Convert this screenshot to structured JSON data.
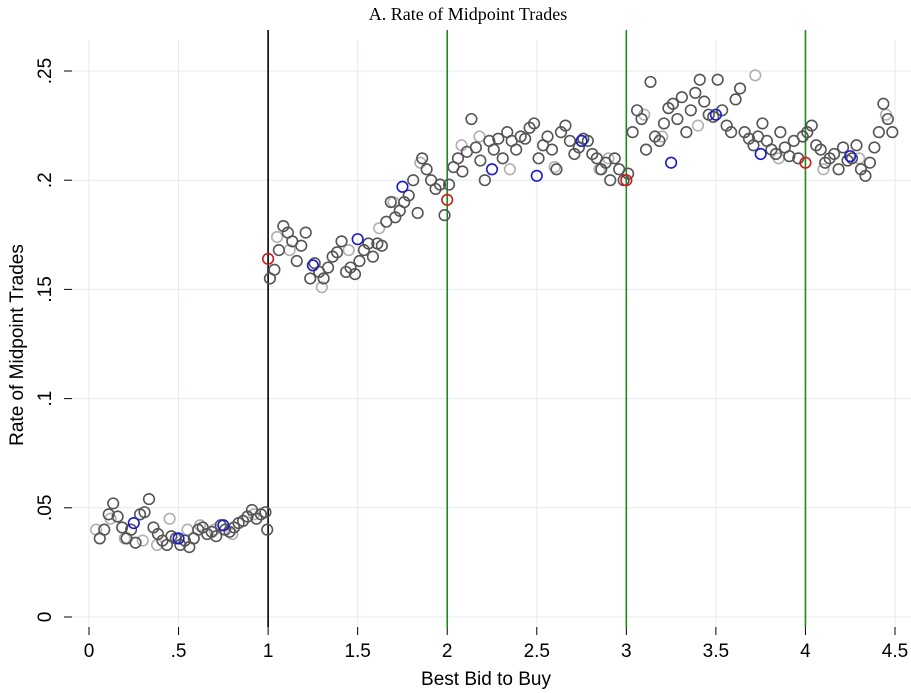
{
  "chart_data": {
    "type": "scatter",
    "title": "A. Rate of Midpoint Trades",
    "x_label": "Best Bid to Buy",
    "y_label": "Rate of Midpoint Trades",
    "xlim": [
      0,
      4.5
    ],
    "ylim": [
      0,
      0.25
    ],
    "xticks": [
      0,
      {
        "value": 0.5,
        "label": ".5"
      },
      1,
      1.5,
      2,
      2.5,
      3,
      3.5,
      4,
      4.5
    ],
    "yticks": [
      0,
      {
        "value": 0.05,
        "label": ".05"
      },
      {
        "value": 0.1,
        "label": ".1"
      },
      {
        "value": 0.15,
        "label": ".15"
      },
      {
        "value": 0.2,
        "label": ".2"
      },
      {
        "value": 0.25,
        "label": ".25"
      }
    ],
    "grid": true,
    "reference_lines": [
      {
        "x": 1,
        "color": "#000000"
      },
      {
        "x": 2,
        "color": "#1a8a1a"
      },
      {
        "x": 3,
        "color": "#1a8a1a"
      },
      {
        "x": 4,
        "color": "#1a8a1a"
      }
    ],
    "series": [
      {
        "color": "#b0b0b0",
        "x": [
          0.04,
          0.12,
          0.2,
          0.3,
          0.38,
          0.45,
          0.55,
          0.62,
          0.7,
          0.8,
          0.92,
          1.05,
          1.12,
          1.3,
          1.45,
          1.62,
          1.7,
          1.85,
          2.08,
          2.18,
          2.35,
          2.6,
          2.85,
          2.9,
          3.1,
          3.2,
          3.4,
          3.72,
          3.85,
          4.1,
          4.3,
          4.45
        ],
        "values": [
          0.04,
          0.045,
          0.036,
          0.035,
          0.033,
          0.045,
          0.04,
          0.042,
          0.04,
          0.038,
          0.047,
          0.174,
          0.168,
          0.151,
          0.168,
          0.178,
          0.19,
          0.208,
          0.216,
          0.22,
          0.205,
          0.206,
          0.205,
          0.21,
          0.23,
          0.22,
          0.225,
          0.248,
          0.21,
          0.205,
          0.21,
          0.23
        ]
      },
      {
        "color": "#555555",
        "x": [
          0.06,
          0.085,
          0.11,
          0.135,
          0.16,
          0.185,
          0.21,
          0.235,
          0.26,
          0.285,
          0.31,
          0.335,
          0.36,
          0.385,
          0.41,
          0.435,
          0.46,
          0.485,
          0.51,
          0.535,
          0.56,
          0.585,
          0.61,
          0.635,
          0.66,
          0.685,
          0.71,
          0.735,
          0.76,
          0.785,
          0.81,
          0.835,
          0.86,
          0.885,
          0.91,
          0.935,
          0.96,
          0.985,
          0.995,
          1.01,
          1.035,
          1.06,
          1.085,
          1.11,
          1.135,
          1.16,
          1.185,
          1.21,
          1.235,
          1.26,
          1.285,
          1.31,
          1.335,
          1.36,
          1.385,
          1.41,
          1.435,
          1.46,
          1.485,
          1.51,
          1.535,
          1.56,
          1.585,
          1.61,
          1.635,
          1.66,
          1.685,
          1.71,
          1.735,
          1.76,
          1.785,
          1.81,
          1.835,
          1.86,
          1.885,
          1.91,
          1.935,
          1.96,
          1.985,
          2.01,
          2.035,
          2.06,
          2.085,
          2.11,
          2.135,
          2.16,
          2.185,
          2.21,
          2.235,
          2.26,
          2.285,
          2.31,
          2.335,
          2.36,
          2.385,
          2.41,
          2.435,
          2.46,
          2.485,
          2.51,
          2.535,
          2.56,
          2.585,
          2.61,
          2.635,
          2.66,
          2.685,
          2.71,
          2.735,
          2.76,
          2.785,
          2.81,
          2.835,
          2.86,
          2.885,
          2.91,
          2.935,
          2.96,
          2.985,
          3.01,
          3.035,
          3.06,
          3.085,
          3.11,
          3.135,
          3.16,
          3.185,
          3.21,
          3.235,
          3.26,
          3.285,
          3.31,
          3.335,
          3.36,
          3.385,
          3.41,
          3.435,
          3.46,
          3.485,
          3.51,
          3.535,
          3.56,
          3.585,
          3.61,
          3.635,
          3.66,
          3.685,
          3.71,
          3.735,
          3.76,
          3.785,
          3.81,
          3.835,
          3.86,
          3.885,
          3.91,
          3.935,
          3.96,
          3.985,
          4.01,
          4.035,
          4.06,
          4.085,
          4.11,
          4.135,
          4.16,
          4.185,
          4.21,
          4.235,
          4.26,
          4.285,
          4.31,
          4.335,
          4.36,
          4.385,
          4.41,
          4.435,
          4.46,
          4.485
        ],
        "values": [
          0.036,
          0.04,
          0.047,
          0.052,
          0.046,
          0.041,
          0.036,
          0.04,
          0.034,
          0.047,
          0.048,
          0.054,
          0.041,
          0.038,
          0.035,
          0.033,
          0.037,
          0.036,
          0.033,
          0.035,
          0.032,
          0.036,
          0.04,
          0.041,
          0.038,
          0.039,
          0.037,
          0.042,
          0.04,
          0.039,
          0.041,
          0.043,
          0.044,
          0.046,
          0.049,
          0.045,
          0.047,
          0.048,
          0.04,
          0.155,
          0.159,
          0.168,
          0.179,
          0.176,
          0.172,
          0.163,
          0.17,
          0.176,
          0.155,
          0.162,
          0.158,
          0.155,
          0.16,
          0.165,
          0.167,
          0.172,
          0.158,
          0.16,
          0.157,
          0.163,
          0.168,
          0.171,
          0.165,
          0.171,
          0.17,
          0.181,
          0.19,
          0.183,
          0.186,
          0.19,
          0.193,
          0.2,
          0.185,
          0.21,
          0.205,
          0.2,
          0.196,
          0.198,
          0.184,
          0.198,
          0.206,
          0.21,
          0.204,
          0.213,
          0.228,
          0.215,
          0.209,
          0.2,
          0.218,
          0.214,
          0.219,
          0.21,
          0.222,
          0.218,
          0.214,
          0.22,
          0.219,
          0.224,
          0.226,
          0.21,
          0.216,
          0.22,
          0.214,
          0.205,
          0.222,
          0.225,
          0.218,
          0.212,
          0.215,
          0.219,
          0.218,
          0.212,
          0.21,
          0.205,
          0.208,
          0.2,
          0.21,
          0.205,
          0.2,
          0.203,
          0.222,
          0.232,
          0.228,
          0.214,
          0.245,
          0.22,
          0.218,
          0.226,
          0.233,
          0.235,
          0.228,
          0.238,
          0.222,
          0.232,
          0.24,
          0.246,
          0.236,
          0.23,
          0.229,
          0.246,
          0.232,
          0.225,
          0.222,
          0.237,
          0.242,
          0.222,
          0.219,
          0.216,
          0.22,
          0.226,
          0.218,
          0.214,
          0.212,
          0.222,
          0.215,
          0.211,
          0.218,
          0.21,
          0.22,
          0.222,
          0.225,
          0.216,
          0.214,
          0.208,
          0.21,
          0.212,
          0.205,
          0.215,
          0.209,
          0.21,
          0.216,
          0.205,
          0.202,
          0.208,
          0.215,
          0.222,
          0.235,
          0.228,
          0.222
        ]
      },
      {
        "color": "#1a1ad0",
        "x": [
          0.25,
          0.5,
          0.75,
          1.25,
          1.5,
          1.75,
          2.25,
          2.5,
          2.75,
          3.25,
          3.5,
          3.75,
          4.25
        ],
        "values": [
          0.043,
          0.036,
          0.042,
          0.161,
          0.173,
          0.197,
          0.205,
          0.202,
          0.218,
          0.208,
          0.23,
          0.212,
          0.211
        ]
      },
      {
        "color": "#d01a1a",
        "x": [
          1,
          2,
          3,
          4
        ],
        "values": [
          0.164,
          0.191,
          0.2,
          0.208
        ]
      }
    ]
  }
}
